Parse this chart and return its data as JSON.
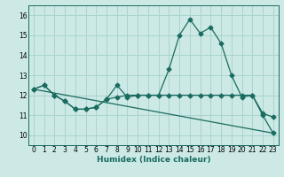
{
  "title": "",
  "xlabel": "Humidex (Indice chaleur)",
  "bg_color": "#cce9e5",
  "grid_color": "#aad4cf",
  "line_color": "#1a6b60",
  "ylim": [
    9.5,
    16.5
  ],
  "xlim": [
    -0.5,
    23.5
  ],
  "yticks": [
    10,
    11,
    12,
    13,
    14,
    15,
    16
  ],
  "xticks": [
    0,
    1,
    2,
    3,
    4,
    5,
    6,
    7,
    8,
    9,
    10,
    11,
    12,
    13,
    14,
    15,
    16,
    17,
    18,
    19,
    20,
    21,
    22,
    23
  ],
  "series1_x": [
    0,
    1,
    2,
    3,
    4,
    5,
    6,
    7,
    8,
    9,
    10,
    11,
    12,
    13,
    14,
    15,
    16,
    17,
    18,
    19,
    20,
    21,
    22,
    23
  ],
  "series1_y": [
    12.3,
    12.5,
    12.0,
    11.7,
    11.3,
    11.3,
    11.4,
    11.8,
    11.9,
    12.0,
    12.0,
    12.0,
    12.0,
    13.3,
    15.0,
    15.8,
    15.1,
    15.4,
    14.6,
    13.0,
    11.9,
    12.0,
    11.1,
    10.9
  ],
  "series2_x": [
    0,
    1,
    2,
    3,
    4,
    5,
    6,
    7,
    8,
    9,
    10,
    11,
    12,
    13,
    14,
    15,
    16,
    17,
    18,
    19,
    20,
    21,
    22,
    23
  ],
  "series2_y": [
    12.3,
    12.5,
    12.0,
    11.7,
    11.3,
    11.3,
    11.4,
    11.8,
    12.5,
    11.9,
    12.0,
    12.0,
    12.0,
    12.0,
    12.0,
    12.0,
    12.0,
    12.0,
    12.0,
    12.0,
    12.0,
    12.0,
    11.0,
    10.1
  ],
  "series3_x": [
    0,
    23
  ],
  "series3_y": [
    12.3,
    10.1
  ],
  "marker_size": 2.5,
  "line_width": 0.9,
  "tick_fontsize": 5.5,
  "xlabel_fontsize": 6.5
}
